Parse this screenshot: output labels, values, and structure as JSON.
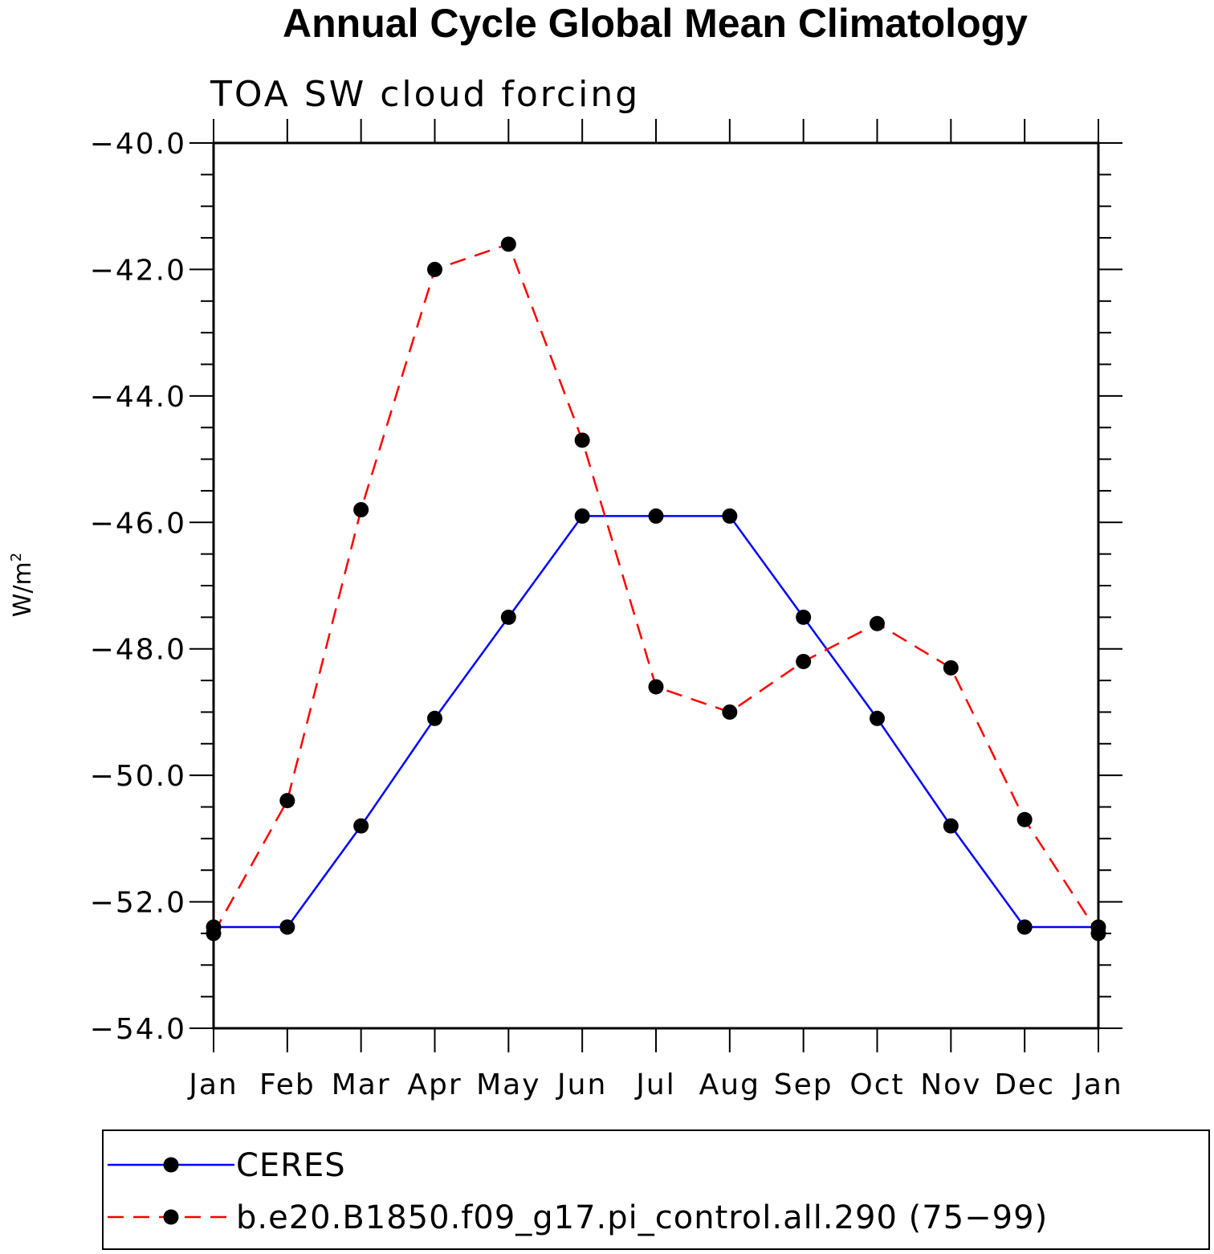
{
  "chart_data": {
    "type": "line",
    "title": "Annual Cycle Global Mean Climatology",
    "subtitle": "TOA SW cloud forcing",
    "ylabel": "W/m",
    "ylabel_sup": "2",
    "xlabel": "",
    "categories": [
      "Jan",
      "Feb",
      "Mar",
      "Apr",
      "May",
      "Jun",
      "Jul",
      "Aug",
      "Sep",
      "Oct",
      "Nov",
      "Dec",
      "Jan"
    ],
    "ylim": [
      -54.0,
      -40.0
    ],
    "yticks": [
      "-40.0",
      "-42.0",
      "-44.0",
      "-46.0",
      "-48.0",
      "-50.0",
      "-52.0",
      "-54.0"
    ],
    "ytick_values": [
      -40,
      -42,
      -44,
      -46,
      -48,
      -50,
      -52,
      -54
    ],
    "legend_position": "bottom",
    "series": [
      {
        "name": "CERES",
        "color": "#0000ff",
        "dash": "solid",
        "values": [
          -52.4,
          -52.4,
          -50.8,
          -49.1,
          -47.5,
          -45.9,
          -45.9,
          -45.9,
          -47.5,
          -49.1,
          -50.8,
          -52.4,
          -52.4
        ]
      },
      {
        "name": "b.e20.B1850.f09_g17.pi_control.all.290 (75-99)",
        "color": "#ff0000",
        "dash": "dashed",
        "values": [
          -52.5,
          -50.4,
          -45.8,
          -42.0,
          -41.6,
          -44.7,
          -48.6,
          -49.0,
          -48.2,
          -47.6,
          -48.3,
          -50.7,
          -52.5
        ]
      }
    ]
  }
}
